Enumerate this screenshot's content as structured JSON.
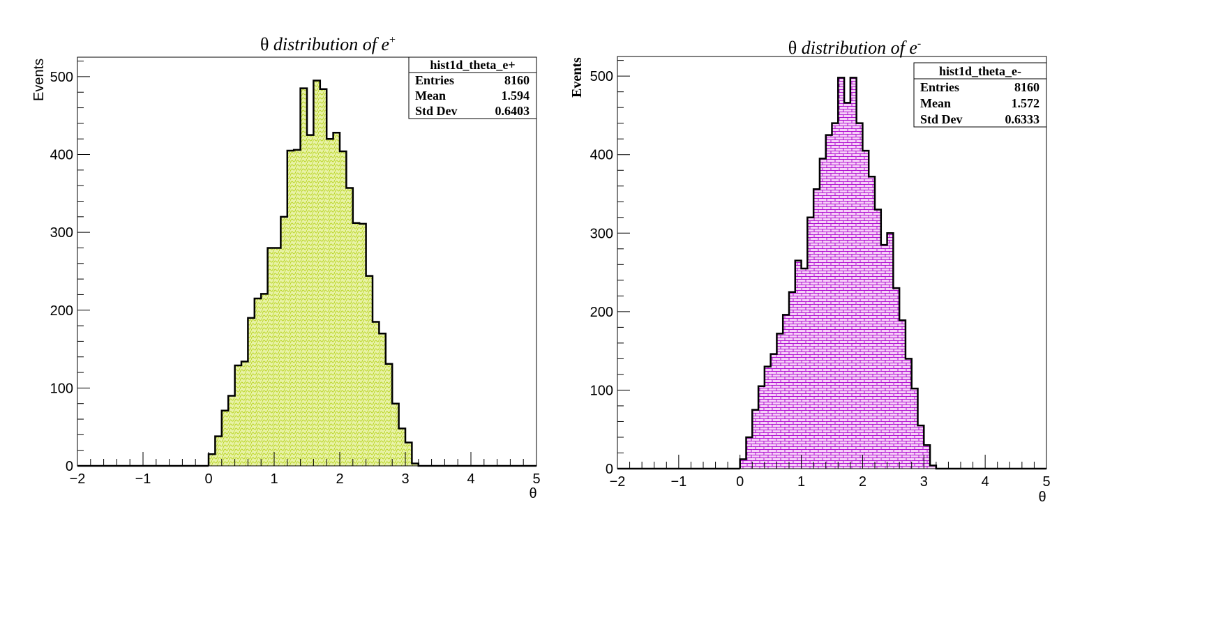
{
  "colors": {
    "fill_left": "#e8f2a6",
    "hatch_left": "#b8d420",
    "fill_right": "#f6d0f8",
    "hatch_right": "#b010d0",
    "line": "#000000"
  },
  "chart_data": [
    {
      "type": "bar",
      "title_prefix": "θ ",
      "title_main": "distribution of e",
      "title_sup": "+",
      "xlabel": "θ",
      "ylabel": "Events",
      "xlim": [
        -2,
        5
      ],
      "ylim": [
        0,
        525
      ],
      "xticks": [
        -2,
        -1,
        0,
        1,
        2,
        3,
        4,
        5
      ],
      "yticks": [
        0,
        100,
        200,
        300,
        400,
        500
      ],
      "bin_width": 0.1,
      "bin_start": 0.0,
      "values": [
        15,
        38,
        71,
        90,
        129,
        134,
        190,
        215,
        221,
        280,
        280,
        320,
        405,
        406,
        485,
        425,
        495,
        484,
        420,
        428,
        404,
        357,
        312,
        311,
        244,
        185,
        170,
        131,
        80,
        48,
        30,
        3
      ],
      "stats": {
        "name": "hist1d_theta_e+",
        "entries_label": "Entries",
        "entries": "8160",
        "mean_label": "Mean",
        "mean": "1.594",
        "std_label": "Std Dev",
        "std": "0.6403"
      }
    },
    {
      "type": "bar",
      "title_prefix": "θ ",
      "title_main": "distribution of e",
      "title_sup": "-",
      "xlabel": "θ",
      "ylabel": "Events",
      "xlim": [
        -2,
        5
      ],
      "ylim": [
        0,
        525
      ],
      "xticks": [
        -2,
        -1,
        0,
        1,
        2,
        3,
        4,
        5
      ],
      "yticks": [
        0,
        100,
        200,
        300,
        400,
        500
      ],
      "bin_width": 0.1,
      "bin_start": 0.0,
      "values": [
        12,
        40,
        75,
        105,
        130,
        146,
        172,
        196,
        225,
        265,
        255,
        320,
        356,
        395,
        425,
        440,
        498,
        466,
        498,
        440,
        405,
        372,
        330,
        285,
        300,
        230,
        189,
        140,
        102,
        55,
        30,
        4
      ],
      "stats": {
        "name": "hist1d_theta_e-",
        "entries_label": "Entries",
        "entries": "8160",
        "mean_label": "Mean",
        "mean": "1.572",
        "std_label": "Std Dev",
        "std": "0.6333"
      }
    }
  ]
}
